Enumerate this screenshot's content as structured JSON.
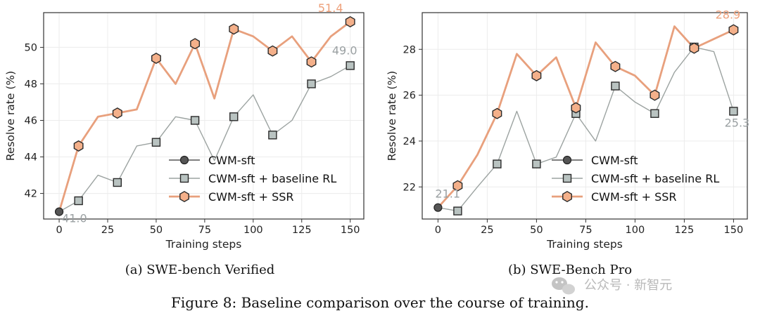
{
  "figure_caption": "Figure 8: Baseline comparison over the course of training.",
  "watermark": "公众号 · 新智元",
  "legend": [
    "CWM-sft",
    "CWM-sft + baseline RL",
    "CWM-sft + SSR"
  ],
  "colors": {
    "ssr": "#e8a07d",
    "ssr_fill": "#f4b08a",
    "rl": "#9ca3a1",
    "rl_fill": "#b9c3c1",
    "start": "#555555",
    "ssr_label": "#eea07a",
    "rl_label": "#9aa0a2"
  },
  "chart_data": [
    {
      "type": "line",
      "caption": "(a) SWE-bench Verified",
      "xlabel": "Training steps",
      "ylabel": "Resolve rate (%)",
      "xlim": [
        -8,
        157
      ],
      "ylim": [
        40.6,
        51.9
      ],
      "xticks": [
        0,
        25,
        50,
        75,
        100,
        125,
        150
      ],
      "yticks": [
        42,
        44,
        46,
        48,
        50
      ],
      "grid": true,
      "legend_position": "lower-right",
      "start": {
        "x": 0,
        "y": 41.0,
        "label": "41.0"
      },
      "series": [
        {
          "name": "CWM-sft + baseline RL",
          "x": [
            0,
            10,
            20,
            30,
            40,
            50,
            60,
            70,
            80,
            90,
            100,
            110,
            120,
            130,
            140,
            150
          ],
          "y": [
            41.0,
            41.6,
            43.0,
            42.6,
            44.6,
            44.8,
            46.2,
            46.0,
            43.8,
            46.2,
            47.4,
            45.2,
            46.0,
            48.0,
            48.4,
            49.0
          ],
          "marker_x": [
            10,
            30,
            50,
            70,
            90,
            110,
            130,
            150
          ],
          "end_label": "49.0"
        },
        {
          "name": "CWM-sft + SSR",
          "x": [
            0,
            10,
            20,
            30,
            40,
            50,
            60,
            70,
            80,
            90,
            100,
            110,
            120,
            130,
            140,
            150
          ],
          "y": [
            41.0,
            44.6,
            46.2,
            46.4,
            46.6,
            49.4,
            48.0,
            50.2,
            47.2,
            51.0,
            50.6,
            49.8,
            50.6,
            49.2,
            50.6,
            51.4
          ],
          "marker_x": [
            10,
            30,
            50,
            70,
            90,
            110,
            130,
            150
          ],
          "end_label": "51.4"
        }
      ]
    },
    {
      "type": "line",
      "caption": "(b) SWE-Bench Pro",
      "xlabel": "Training steps",
      "ylabel": "Resolve rate (%)",
      "xlim": [
        -8,
        157
      ],
      "ylim": [
        20.6,
        29.6
      ],
      "xticks": [
        0,
        25,
        50,
        75,
        100,
        125,
        150
      ],
      "yticks": [
        22,
        24,
        26,
        28
      ],
      "grid": true,
      "legend_position": "lower-right",
      "start": {
        "x": 0,
        "y": 21.1,
        "label": "21.1"
      },
      "series": [
        {
          "name": "CWM-sft + baseline RL",
          "x": [
            0,
            10,
            20,
            30,
            40,
            50,
            60,
            70,
            80,
            90,
            100,
            110,
            120,
            130,
            140,
            150
          ],
          "y": [
            21.1,
            20.95,
            22.0,
            23.0,
            25.3,
            23.0,
            23.3,
            25.2,
            24.0,
            26.4,
            25.7,
            25.2,
            27.0,
            28.1,
            27.9,
            25.3
          ],
          "marker_x": [
            10,
            30,
            50,
            70,
            90,
            110,
            130,
            150
          ],
          "end_label": "25.3"
        },
        {
          "name": "CWM-sft + SSR",
          "x": [
            0,
            10,
            20,
            30,
            40,
            50,
            60,
            70,
            80,
            90,
            100,
            110,
            120,
            130,
            140,
            150
          ],
          "y": [
            21.1,
            22.05,
            23.4,
            25.2,
            27.8,
            26.85,
            27.65,
            25.45,
            28.3,
            27.25,
            26.85,
            26.0,
            29.0,
            28.05,
            28.45,
            28.85
          ],
          "marker_x": [
            10,
            30,
            50,
            70,
            90,
            110,
            130,
            150
          ],
          "end_label": "28.9"
        }
      ]
    }
  ]
}
